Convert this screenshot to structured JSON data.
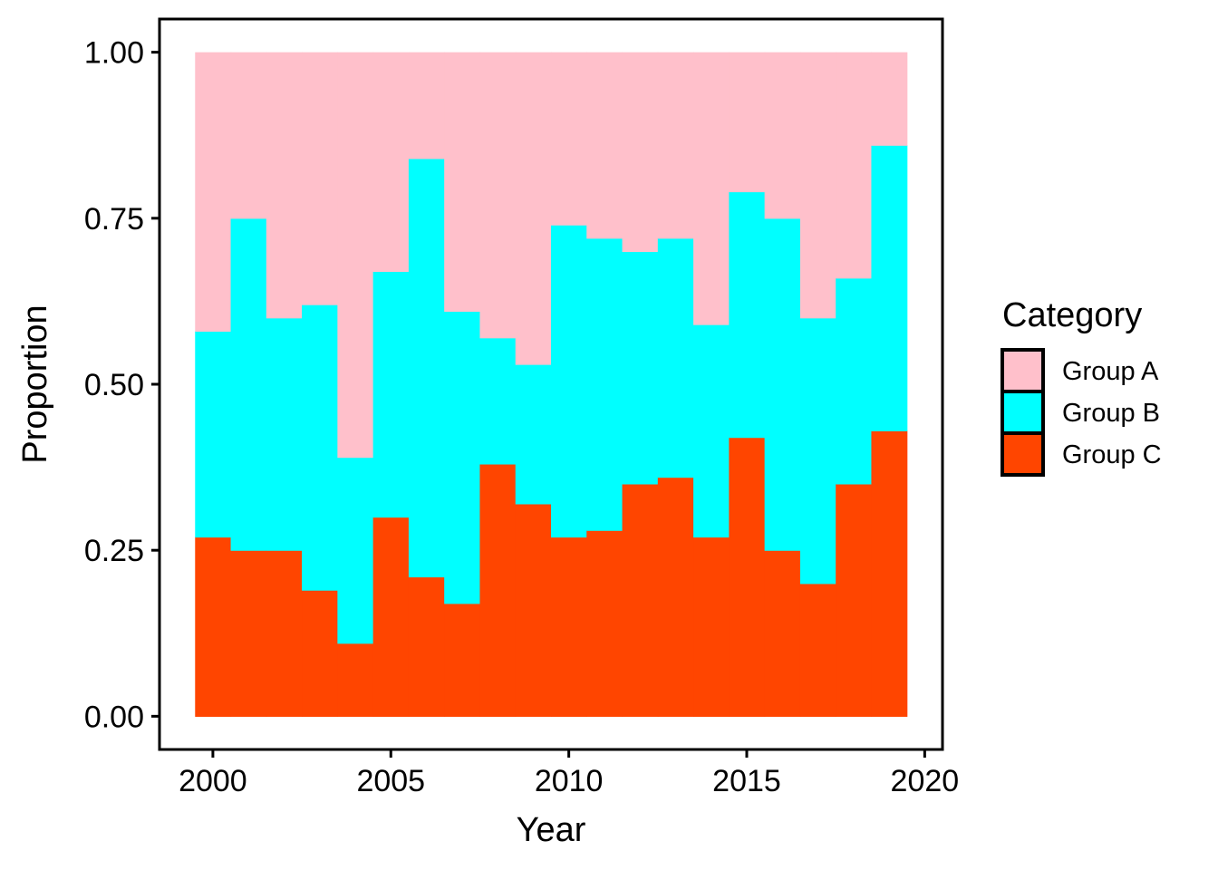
{
  "chart_data": {
    "type": "area",
    "stacked": true,
    "normalized": true,
    "step": true,
    "xlabel": "Year",
    "ylabel": "Proportion",
    "x": [
      2000,
      2001,
      2002,
      2003,
      2004,
      2005,
      2006,
      2007,
      2008,
      2009,
      2010,
      2011,
      2012,
      2013,
      2014,
      2015,
      2016,
      2017,
      2018,
      2019
    ],
    "xlim": [
      1998.5,
      2020.5
    ],
    "ylim": [
      -0.05,
      1.05
    ],
    "xticks": [
      2000,
      2005,
      2010,
      2015,
      2020
    ],
    "xtick_labels": [
      "2000",
      "2005",
      "2010",
      "2015",
      "2020"
    ],
    "yticks": [
      0,
      0.25,
      0.5,
      0.75,
      1.0
    ],
    "ytick_labels": [
      "0.00",
      "0.25",
      "0.50",
      "0.75",
      "1.00"
    ],
    "grid": false,
    "legend": {
      "title": "Category",
      "placement": "right"
    },
    "series": [
      {
        "name": "Group A",
        "color": "#FFC0CB",
        "values": [
          0.42,
          0.25,
          0.4,
          0.38,
          0.61,
          0.33,
          0.16,
          0.39,
          0.43,
          0.47,
          0.26,
          0.28,
          0.3,
          0.28,
          0.41,
          0.21,
          0.25,
          0.4,
          0.34,
          0.14
        ]
      },
      {
        "name": "Group B",
        "color": "#00FFFF",
        "values": [
          0.31,
          0.5,
          0.35,
          0.43,
          0.28,
          0.37,
          0.63,
          0.44,
          0.19,
          0.21,
          0.47,
          0.44,
          0.35,
          0.36,
          0.32,
          0.37,
          0.5,
          0.4,
          0.31,
          0.43
        ]
      },
      {
        "name": "Group C",
        "color": "#FF4500",
        "values": [
          0.27,
          0.25,
          0.25,
          0.19,
          0.11,
          0.3,
          0.21,
          0.17,
          0.38,
          0.32,
          0.27,
          0.28,
          0.35,
          0.36,
          0.27,
          0.42,
          0.25,
          0.2,
          0.35,
          0.43
        ]
      }
    ]
  }
}
